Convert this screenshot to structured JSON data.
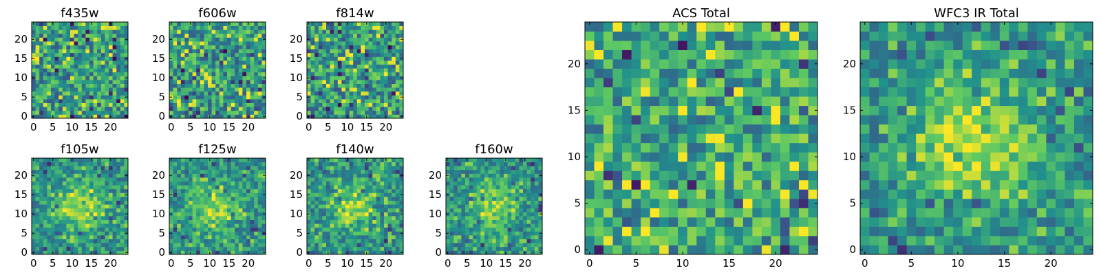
{
  "figure": {
    "colormap": [
      "#440154",
      "#3b528b",
      "#21918c",
      "#5ec962",
      "#fde725"
    ]
  },
  "chart_data": [
    {
      "type": "heatmap",
      "title": "f435w",
      "grid_size": 25,
      "xticks": [
        "0",
        "5",
        "10",
        "15",
        "20"
      ],
      "yticks": [
        "0",
        "5",
        "10",
        "15",
        "20"
      ],
      "pattern": "noise",
      "center_boost": 0.0,
      "seed": 11
    },
    {
      "type": "heatmap",
      "title": "f606w",
      "grid_size": 25,
      "xticks": [
        "0",
        "5",
        "10",
        "15",
        "20"
      ],
      "yticks": [
        "0",
        "5",
        "10",
        "15",
        "20"
      ],
      "pattern": "noise",
      "center_boost": 0.0,
      "seed": 23
    },
    {
      "type": "heatmap",
      "title": "f814w",
      "grid_size": 25,
      "xticks": [
        "0",
        "5",
        "10",
        "15",
        "20"
      ],
      "yticks": [
        "0",
        "5",
        "10",
        "15",
        "20"
      ],
      "pattern": "noise",
      "center_boost": 0.0,
      "seed": 37
    },
    {
      "type": "heatmap",
      "title": "f105w",
      "grid_size": 25,
      "xticks": [
        "0",
        "5",
        "10",
        "15",
        "20"
      ],
      "yticks": [
        "0",
        "5",
        "10",
        "15",
        "20"
      ],
      "pattern": "blob",
      "center_boost": 0.35,
      "seed": 41
    },
    {
      "type": "heatmap",
      "title": "f125w",
      "grid_size": 25,
      "xticks": [
        "0",
        "5",
        "10",
        "15",
        "20"
      ],
      "yticks": [
        "0",
        "5",
        "10",
        "15",
        "20"
      ],
      "pattern": "blob",
      "center_boost": 0.35,
      "seed": 53
    },
    {
      "type": "heatmap",
      "title": "f140w",
      "grid_size": 25,
      "xticks": [
        "0",
        "5",
        "10",
        "15",
        "20"
      ],
      "yticks": [
        "0",
        "5",
        "10",
        "15",
        "20"
      ],
      "pattern": "blob",
      "center_boost": 0.3,
      "seed": 67
    },
    {
      "type": "heatmap",
      "title": "f160w",
      "grid_size": 25,
      "xticks": [
        "0",
        "5",
        "10",
        "15",
        "20"
      ],
      "yticks": [
        "0",
        "5",
        "10",
        "15",
        "20"
      ],
      "pattern": "blob",
      "center_boost": 0.3,
      "seed": 79
    },
    {
      "type": "heatmap",
      "title": "ACS Total",
      "grid_size": 25,
      "xticks": [
        "0",
        "5",
        "10",
        "15",
        "20"
      ],
      "yticks": [
        "0",
        "5",
        "10",
        "15",
        "20"
      ],
      "pattern": "noise",
      "center_boost": 0.05,
      "seed": 97
    },
    {
      "type": "heatmap",
      "title": "WFC3 IR Total",
      "grid_size": 25,
      "xticks": [
        "0",
        "5",
        "10",
        "15",
        "20"
      ],
      "yticks": [
        "0",
        "5",
        "10",
        "15",
        "20"
      ],
      "pattern": "blob",
      "center_boost": 0.45,
      "seed": 101
    }
  ]
}
